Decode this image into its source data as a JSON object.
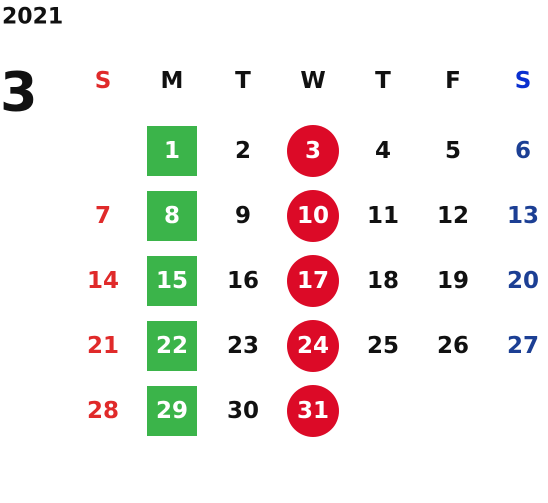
{
  "year": "2021",
  "month": "3",
  "weekdays": [
    "S",
    "M",
    "T",
    "W",
    "T",
    "F",
    "S"
  ],
  "weeks": [
    [
      null,
      1,
      2,
      3,
      4,
      5,
      6
    ],
    [
      7,
      8,
      9,
      10,
      11,
      12,
      13
    ],
    [
      14,
      15,
      16,
      17,
      18,
      19,
      20
    ],
    [
      21,
      22,
      23,
      24,
      25,
      26,
      27
    ],
    [
      28,
      29,
      30,
      31,
      null,
      null,
      null
    ]
  ]
}
